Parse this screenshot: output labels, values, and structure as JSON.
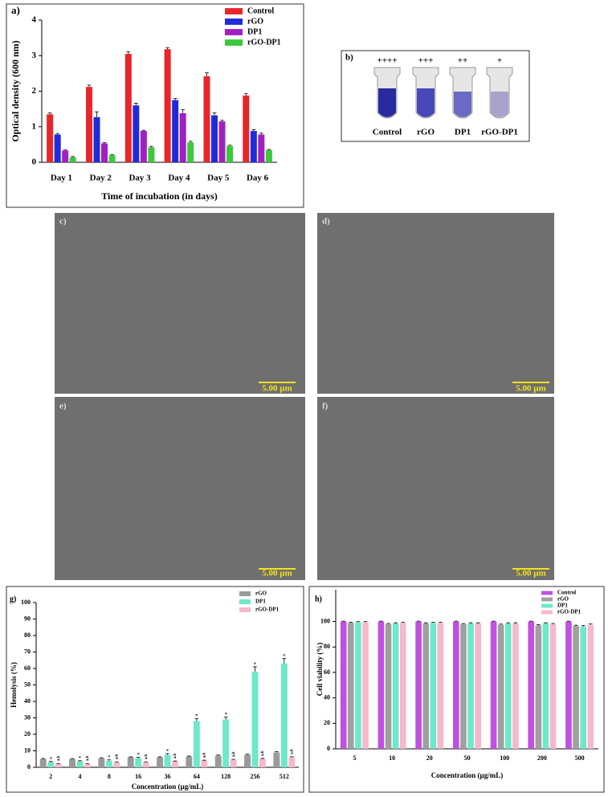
{
  "chart_data": [
    {
      "type": "bar",
      "panel_label": "a)",
      "x_label": "Time of incubation (in days)",
      "y_label": "Optical density (600 nm)",
      "categories": [
        "Day 1",
        "Day 2",
        "Day 3",
        "Day 4",
        "Day 5",
        "Day 6"
      ],
      "series": [
        {
          "name": "Control",
          "color": "#e8262a",
          "values": [
            1.35,
            2.12,
            3.05,
            3.18,
            2.42,
            1.88
          ],
          "errors": [
            0.04,
            0.05,
            0.06,
            0.04,
            0.1,
            0.05
          ]
        },
        {
          "name": "rGO",
          "color": "#1f2bd9",
          "values": [
            0.78,
            1.27,
            1.6,
            1.75,
            1.32,
            0.88
          ],
          "errors": [
            0.03,
            0.15,
            0.06,
            0.05,
            0.07,
            0.04
          ]
        },
        {
          "name": "DP1",
          "color": "#a020c0",
          "values": [
            0.33,
            0.53,
            0.88,
            1.38,
            1.15,
            0.78
          ],
          "errors": [
            0.02,
            0.02,
            0.02,
            0.1,
            0.03,
            0.04
          ]
        },
        {
          "name": "rGO-DP1",
          "color": "#3cc83c",
          "values": [
            0.14,
            0.2,
            0.42,
            0.56,
            0.46,
            0.34
          ],
          "errors": [
            0.02,
            0.02,
            0.03,
            0.03,
            0.02,
            0.02
          ]
        }
      ],
      "ylim": [
        0,
        4
      ],
      "yticks": [
        0,
        1,
        2,
        3,
        4
      ],
      "legend": "top-right"
    },
    {
      "type": "bar",
      "panel_label": "g)",
      "x_label": "Concentration (µg/mL)",
      "y_label": "Hemolysis (%)",
      "categories": [
        "2",
        "4",
        "8",
        "16",
        "36",
        "64",
        "128",
        "256",
        "512"
      ],
      "series": [
        {
          "name": "rGO",
          "color": "#9a9a9a",
          "values": [
            5,
            5,
            5.5,
            6,
            6,
            6.5,
            7,
            7.5,
            9
          ],
          "errors": [
            0.3,
            0.3,
            0.3,
            0.3,
            0.3,
            0.3,
            0.4,
            0.4,
            0.5
          ]
        },
        {
          "name": "DP1",
          "color": "#6ee8c8",
          "values": [
            3,
            3.5,
            4,
            5.5,
            7.5,
            28,
            29,
            58,
            63
          ],
          "errors": [
            0.5,
            0.5,
            0.5,
            0.6,
            0.8,
            1.5,
            1.5,
            3,
            3
          ],
          "annotations": [
            "a",
            "a",
            "a",
            "a",
            "a",
            "a",
            "a",
            "a",
            "a"
          ]
        },
        {
          "name": "rGO-DP1",
          "color": "#f7b8cc",
          "values": [
            2,
            2,
            3,
            3,
            3.5,
            4,
            4.5,
            5,
            6
          ],
          "errors": [
            0.3,
            0.3,
            0.3,
            0.3,
            0.3,
            0.3,
            0.3,
            0.4,
            0.4
          ],
          "annotations": [
            "a,b",
            "a,b",
            "a,b",
            "a,b",
            "a,b",
            "a,b",
            "a,b",
            "a,b",
            "a,b"
          ]
        }
      ],
      "ylim": [
        0,
        100
      ],
      "yticks": [
        0,
        10,
        20,
        30,
        40,
        50,
        60,
        70,
        80,
        90,
        100
      ],
      "legend": "top-right"
    },
    {
      "type": "bar",
      "panel_label": "h)",
      "x_label": "Concentration (µg/mL)",
      "y_label": "Cell viability (%)",
      "categories": [
        "5",
        "10",
        "20",
        "50",
        "100",
        "200",
        "500"
      ],
      "series": [
        {
          "name": "Control",
          "color": "#c050e0",
          "values": [
            100,
            100,
            100,
            100,
            100,
            100,
            100
          ],
          "errors": [
            0.3,
            0.3,
            0.3,
            0.3,
            0.3,
            0.3,
            0.3
          ]
        },
        {
          "name": "rGO",
          "color": "#a0a0a0",
          "values": [
            99,
            98,
            98.5,
            98,
            97.5,
            97,
            96.5
          ],
          "errors": [
            0.5,
            0.5,
            0.5,
            0.5,
            0.5,
            0.5,
            0.6
          ]
        },
        {
          "name": "DP1",
          "color": "#6ee8c8",
          "values": [
            99.5,
            98.5,
            99,
            98.5,
            98.5,
            98.5,
            96
          ],
          "errors": [
            0.5,
            0.5,
            0.5,
            0.5,
            0.5,
            0.5,
            0.8
          ]
        },
        {
          "name": "rGO-DP1",
          "color": "#f7b8cc",
          "values": [
            99.5,
            99,
            99,
            98.5,
            98.5,
            98,
            97.5
          ],
          "errors": [
            0.5,
            0.5,
            0.5,
            0.5,
            0.5,
            0.5,
            0.6
          ]
        }
      ],
      "ylim": [
        0,
        125
      ],
      "yticks": [
        0,
        20,
        40,
        60,
        80,
        100
      ],
      "legend": "top-right"
    }
  ],
  "panel_b": {
    "label": "b)",
    "tubes": [
      {
        "signs": "++++",
        "name": "Control"
      },
      {
        "signs": "+++",
        "name": "rGO"
      },
      {
        "signs": "++",
        "name": "DP1"
      },
      {
        "signs": "+",
        "name": "rGO-DP1"
      }
    ]
  },
  "sem_images": [
    {
      "label": "c)",
      "scale": "5.00 µm"
    },
    {
      "label": "d)",
      "scale": "5.00 µm"
    },
    {
      "label": "e)",
      "scale": "5.00 µm"
    },
    {
      "label": "f)",
      "scale": "5.00 µm"
    }
  ]
}
